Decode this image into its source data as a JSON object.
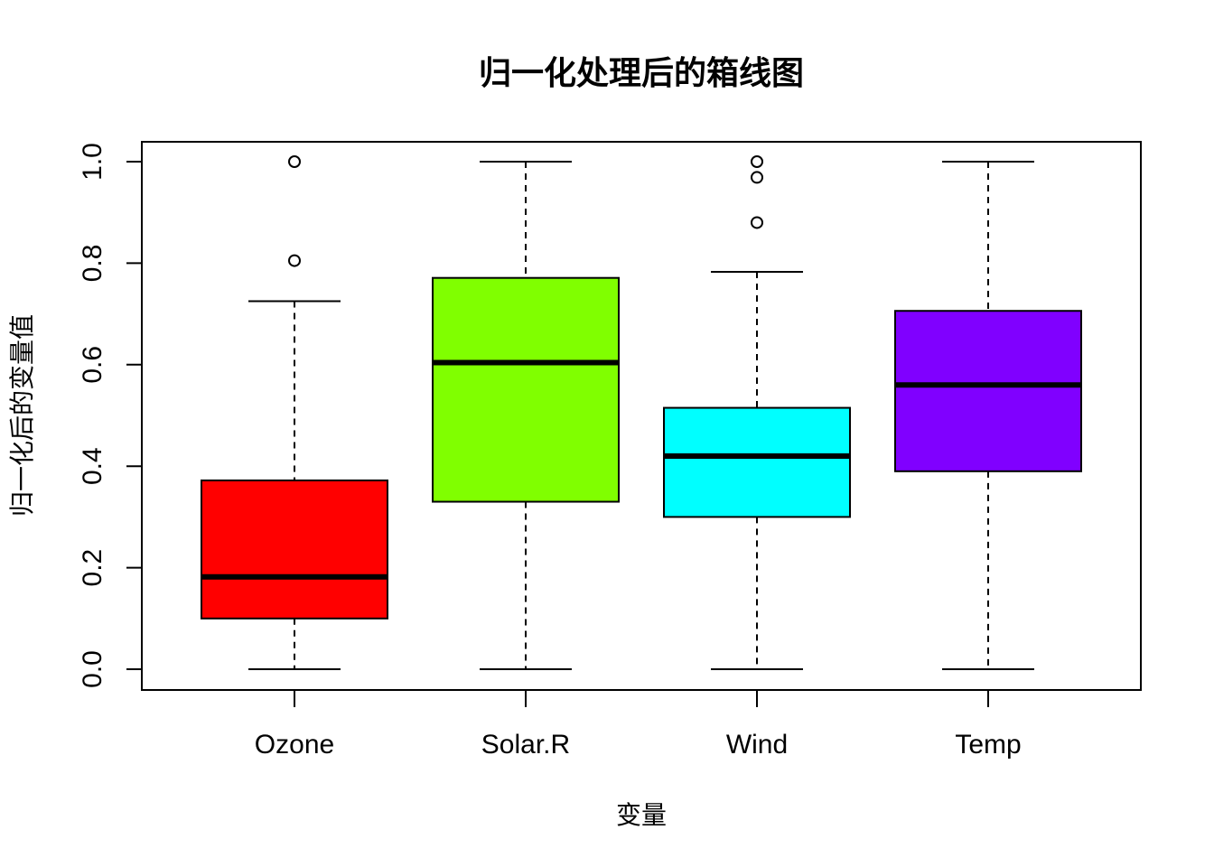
{
  "chart_data": {
    "type": "boxplot",
    "title": "归一化处理后的箱线图",
    "xlabel": "变量",
    "ylabel": "归一化后的变量值",
    "ylim": [
      0,
      1
    ],
    "yticks": [
      "0.0",
      "0.2",
      "0.4",
      "0.6",
      "0.8",
      "1.0"
    ],
    "categories": [
      "Ozone",
      "Solar.R",
      "Wind",
      "Temp"
    ],
    "boxes": [
      {
        "name": "Ozone",
        "color": "#FF0000",
        "min": 0.0,
        "q1": 0.1,
        "median": 0.182,
        "q3": 0.372,
        "max": 0.725,
        "outliers": [
          0.805,
          1.0
        ]
      },
      {
        "name": "Solar.R",
        "color": "#80FF00",
        "min": 0.0,
        "q1": 0.33,
        "median": 0.604,
        "q3": 0.771,
        "max": 1.0,
        "outliers": []
      },
      {
        "name": "Wind",
        "color": "#00FFFF",
        "min": 0.0,
        "q1": 0.3,
        "median": 0.42,
        "q3": 0.515,
        "max": 0.783,
        "outliers": [
          0.88,
          0.969,
          1.0
        ]
      },
      {
        "name": "Temp",
        "color": "#8000FF",
        "min": 0.0,
        "q1": 0.39,
        "median": 0.56,
        "q3": 0.706,
        "max": 1.0,
        "outliers": []
      }
    ],
    "grid": false,
    "legend": "none"
  }
}
